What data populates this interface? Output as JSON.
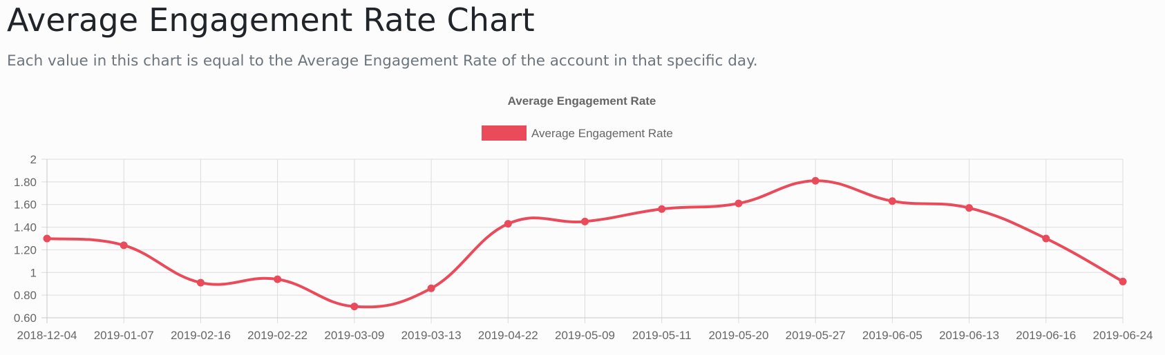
{
  "page": {
    "title": "Average Engagement Rate Chart",
    "subtitle": "Each value in this chart is equal to the Average Engagement Rate of the account in that specific day."
  },
  "chart_data": {
    "type": "line",
    "title": "Average Engagement Rate",
    "legend": {
      "position": "top",
      "entries": [
        "Average Engagement Rate"
      ]
    },
    "categories": [
      "2018-12-04",
      "2019-01-07",
      "2019-02-16",
      "2019-02-22",
      "2019-03-09",
      "2019-03-13",
      "2019-04-22",
      "2019-05-09",
      "2019-05-11",
      "2019-05-20",
      "2019-05-27",
      "2019-06-05",
      "2019-06-13",
      "2019-06-16",
      "2019-06-24"
    ],
    "series": [
      {
        "name": "Average Engagement Rate",
        "color": "#e94b5a",
        "values": [
          1.3,
          1.24,
          0.91,
          0.94,
          0.7,
          0.86,
          1.43,
          1.45,
          1.56,
          1.61,
          1.81,
          1.63,
          1.57,
          1.3,
          0.92
        ]
      }
    ],
    "ylim": [
      0.6,
      2
    ],
    "yticks": [
      {
        "value": 2,
        "label": "2"
      },
      {
        "value": 1.8,
        "label": "1.80"
      },
      {
        "value": 1.6,
        "label": "1.60"
      },
      {
        "value": 1.4,
        "label": "1.40"
      },
      {
        "value": 1.2,
        "label": "1.20"
      },
      {
        "value": 1,
        "label": "1"
      },
      {
        "value": 0.8,
        "label": "0.80"
      },
      {
        "value": 0.6,
        "label": "0.60"
      }
    ],
    "grid": true,
    "xlabel": "",
    "ylabel": ""
  }
}
